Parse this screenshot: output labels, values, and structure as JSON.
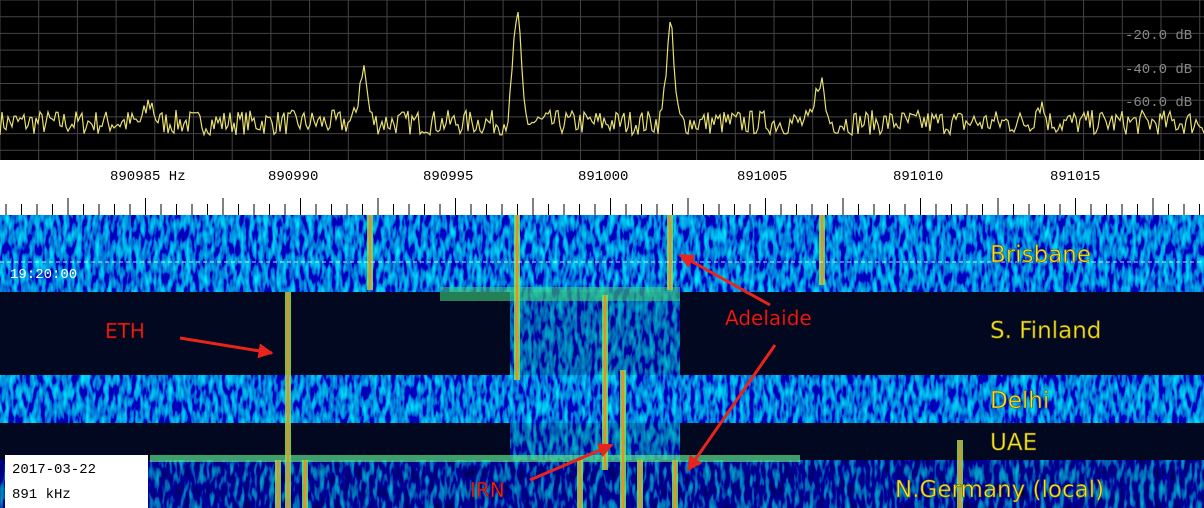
{
  "spectrum": {
    "level_labels": [
      "-20.0 dB",
      "-40.0 dB",
      "-60.0 dB"
    ]
  },
  "frequency_scale": {
    "labels": [
      "890985 Hz",
      "890990",
      "890995",
      "891000",
      "891005",
      "891010",
      "891015"
    ]
  },
  "waterfall": {
    "timestamp": "19:20:00",
    "stations": [
      "Brisbane",
      "S. Finland",
      "Delhi",
      "UAE",
      "N.Germany (local)"
    ],
    "annotations": [
      "ETH",
      "Adelaide",
      "IRN"
    ]
  },
  "info_box": {
    "date": "2017-03-22",
    "frequency": "891 kHz"
  }
}
